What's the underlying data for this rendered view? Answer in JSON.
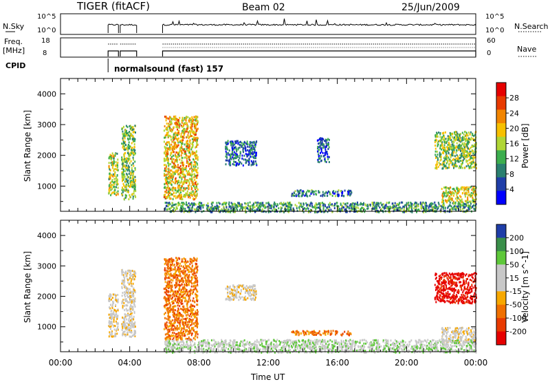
{
  "header": {
    "station": "TIGER (fitACF)",
    "beam": "Beam 02",
    "date": "25/Jun/2009"
  },
  "status_panels": {
    "nsky_label": "N.Sky",
    "nsearch_label": "N.Search",
    "nsky_ticks": [
      "10^5",
      "10^0"
    ],
    "nsearch_ticks": [
      "10^5",
      "10^0"
    ],
    "freq_label": [
      "Freq.",
      "[MHz]"
    ],
    "freq_ticks": [
      "18",
      "8"
    ],
    "nave_label": "Nave",
    "nave_ticks": [
      "60",
      "0"
    ],
    "cpid_label": "CPID",
    "cpid_text": "normalsound (fast) 157",
    "data_blocks_hours": [
      [
        2.75,
        3.35
      ],
      [
        3.45,
        4.4
      ],
      [
        5.9,
        24.0
      ]
    ]
  },
  "chart_data": [
    {
      "type": "heatmap",
      "title": "",
      "xlabel": "",
      "ylabel": "Slant Range [km]",
      "xlim": [
        0,
        24
      ],
      "ylim": [
        180,
        4500
      ],
      "yticks": [
        1000,
        2000,
        3000,
        4000
      ],
      "colorbar": {
        "label": "Power [dB]",
        "ticks": [
          4,
          8,
          12,
          16,
          20,
          24,
          28
        ],
        "range": [
          0,
          32
        ],
        "colors": [
          "#0000ff",
          "#1f3ea8",
          "#2a7f6f",
          "#3cae4e",
          "#b0d636",
          "#f7c000",
          "#f28500",
          "#e83a00",
          "#e60000"
        ]
      },
      "echo_regions": [
        {
          "t": [
            2.75,
            3.3
          ],
          "range": [
            700,
            2100
          ],
          "level": 16
        },
        {
          "t": [
            3.5,
            4.3
          ],
          "range": [
            600,
            3000
          ],
          "level": 14
        },
        {
          "t": [
            5.95,
            7.9
          ],
          "range": [
            600,
            3300
          ],
          "level": 20
        },
        {
          "t": [
            9.5,
            11.3
          ],
          "range": [
            1700,
            2500
          ],
          "level": 6
        },
        {
          "t": [
            13.3,
            16.8
          ],
          "range": [
            700,
            900
          ],
          "level": 8
        },
        {
          "t": [
            14.8,
            15.5
          ],
          "range": [
            1800,
            2600
          ],
          "level": 6
        },
        {
          "t": [
            21.6,
            24.0
          ],
          "range": [
            1600,
            2800
          ],
          "level": 14
        },
        {
          "t": [
            22.0,
            24.0
          ],
          "range": [
            500,
            1000
          ],
          "level": 18
        },
        {
          "t": [
            6.0,
            24.0
          ],
          "range": [
            180,
            500
          ],
          "level": 10
        }
      ]
    },
    {
      "type": "heatmap",
      "title": "",
      "xlabel": "Time UT",
      "ylabel": "Slant Range [km]",
      "xlim": [
        0,
        24
      ],
      "ylim": [
        180,
        4500
      ],
      "xticks": [
        "00:00",
        "04:00",
        "08:00",
        "12:00",
        "16:00",
        "20:00",
        "00:00"
      ],
      "yticks": [
        1000,
        2000,
        3000,
        4000
      ],
      "colorbar": {
        "label": "Velocity [m s^-1]",
        "ticks": [
          200,
          100,
          50,
          15,
          -15,
          -50,
          -100,
          -200
        ],
        "colors": [
          "#1f3ea8",
          "#3a8f4a",
          "#5ec83a",
          "#c8c8c8",
          "#c8c8c8",
          "#f7a800",
          "#f07000",
          "#e83a00",
          "#e60000"
        ]
      },
      "echo_regions": [
        {
          "t": [
            2.75,
            3.3
          ],
          "range": [
            700,
            2100
          ],
          "velocity": 0
        },
        {
          "t": [
            3.5,
            4.3
          ],
          "range": [
            700,
            2900
          ],
          "velocity": 0
        },
        {
          "t": [
            5.95,
            7.9
          ],
          "range": [
            600,
            3300
          ],
          "velocity": -60
        },
        {
          "t": [
            9.5,
            11.3
          ],
          "range": [
            1900,
            2400
          ],
          "velocity": 0
        },
        {
          "t": [
            13.3,
            16.8
          ],
          "range": [
            750,
            900
          ],
          "velocity": -60
        },
        {
          "t": [
            21.6,
            24.0
          ],
          "range": [
            1800,
            2800
          ],
          "velocity": -200
        },
        {
          "t": [
            22.0,
            24.0
          ],
          "range": [
            500,
            1000
          ],
          "velocity": 0
        },
        {
          "t": [
            6.0,
            24.0
          ],
          "range": [
            180,
            600
          ],
          "velocity": 40
        }
      ]
    }
  ]
}
